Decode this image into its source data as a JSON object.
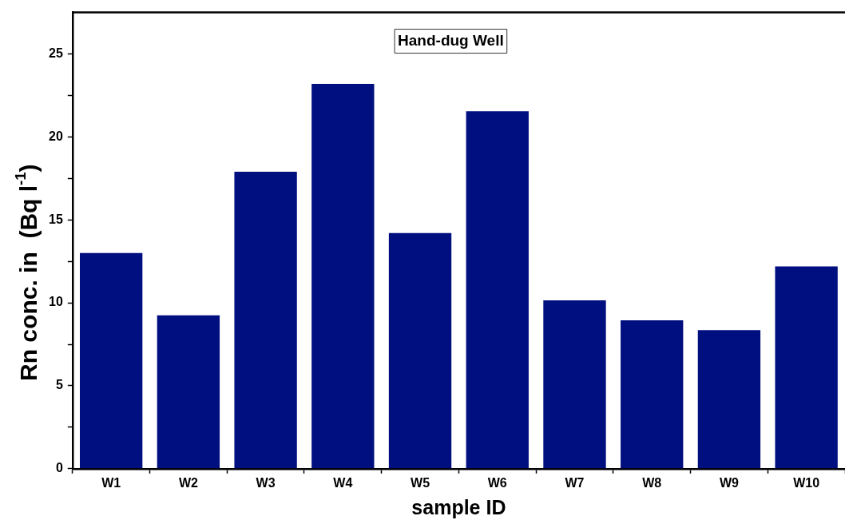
{
  "chart_data": {
    "type": "bar",
    "title": "Hand-dug Well",
    "xlabel": "sample ID",
    "ylabel": "Rn conc. in  (Bq l$^{-1}$)",
    "categories": [
      "W1",
      "W2",
      "W3",
      "W4",
      "W5",
      "W6",
      "W7",
      "W8",
      "W9",
      "W10"
    ],
    "values": [
      13.0,
      9.25,
      17.9,
      23.2,
      14.2,
      21.55,
      10.15,
      8.95,
      8.35,
      12.2
    ],
    "color": "#000f7f",
    "ylim": [
      0,
      27.5
    ],
    "yticks": [
      0,
      {
        "value": 2.5,
        "label": null
      },
      5,
      {
        "value": 7.5,
        "label": null
      },
      10,
      {
        "value": 12.5,
        "label": null
      },
      15,
      {
        "value": 17.5,
        "label": null
      },
      20,
      {
        "value": 22.5,
        "label": null
      },
      25
    ],
    "grid": false,
    "legend": false
  }
}
